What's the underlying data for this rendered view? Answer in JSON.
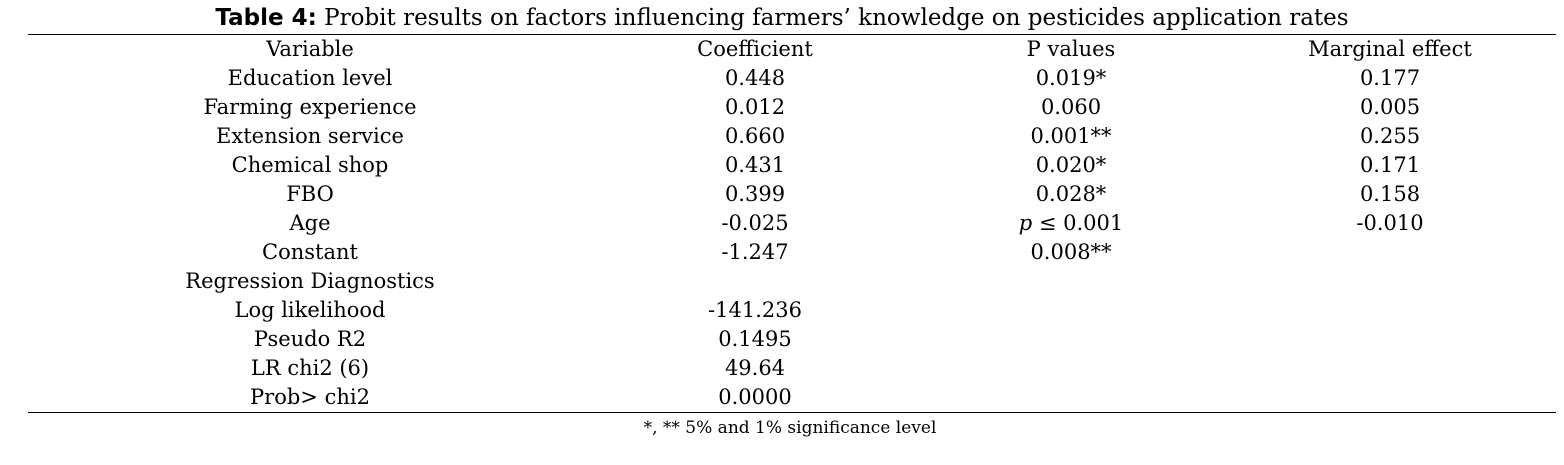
{
  "title": {
    "label": "Table 4:",
    "text": " Probit results on factors influencing farmers’ knowledge on pesticides application rates"
  },
  "columns": [
    "Variable",
    "Coefficient",
    "P values",
    "Marginal effect"
  ],
  "rows": [
    {
      "variable": "Education level",
      "coef": "0.448",
      "p": "0.019*",
      "me": "0.177"
    },
    {
      "variable": "Farming experience",
      "coef": "0.012",
      "p": "0.060",
      "me": "0.005"
    },
    {
      "variable": "Extension service",
      "coef": "0.660",
      "p": "0.001**",
      "me": "0.255"
    },
    {
      "variable": "Chemical shop",
      "coef": "0.431",
      "p": "0.020*",
      "me": "0.171"
    },
    {
      "variable": "FBO",
      "coef": "0.399",
      "p": "0.028*",
      "me": "0.158"
    },
    {
      "variable": "Age",
      "coef": "-0.025",
      "p_italic": "p",
      "p": " ≤ 0.001",
      "me": "-0.010"
    },
    {
      "variable": "Constant",
      "coef": "-1.247",
      "p": "0.008**",
      "me": ""
    }
  ],
  "diagnostics": {
    "heading": "Regression Diagnostics",
    "rows": [
      {
        "label": "Log likelihood",
        "value": "-141.236"
      },
      {
        "label": "Pseudo R2",
        "value": "0.1495"
      },
      {
        "label": "LR chi2 (6)",
        "value": "49.64"
      },
      {
        "label": "Prob> chi2",
        "value": "0.0000"
      }
    ]
  },
  "footnote": "*, ** 5% and 1% significance level"
}
